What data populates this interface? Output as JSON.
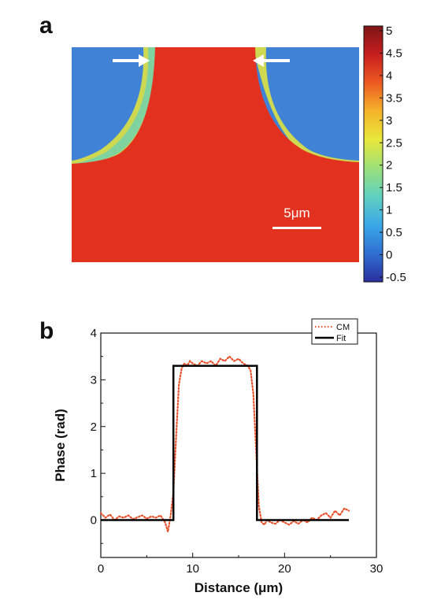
{
  "panels": {
    "a_label": "a",
    "b_label": "b"
  },
  "scalebar": {
    "label": "5μm"
  },
  "colorbar": {
    "ticks": [
      "5",
      "4.5",
      "4",
      "3.5",
      "3",
      "2.5",
      "2",
      "1.5",
      "1",
      "0.5",
      "0",
      "-0.5"
    ],
    "colors": [
      "#2b2f9e",
      "#2f6fd0",
      "#3aa8e8",
      "#5fd0c0",
      "#9be07a",
      "#e8e83a",
      "#f5b32a",
      "#ec5a22",
      "#c81e1e",
      "#7d1515"
    ]
  },
  "chart_data": {
    "type": "line",
    "xlabel": "Distance (μm)",
    "ylabel": "Phase (rad)",
    "xlim": [
      0,
      30
    ],
    "ylim": [
      -0.8,
      4
    ],
    "xticks": [
      "0",
      "10",
      "20",
      "30"
    ],
    "yticks": [
      "0",
      "1",
      "2",
      "3",
      "4"
    ],
    "legend_position": "top-right",
    "series": [
      {
        "name": "CM",
        "style": "dotted",
        "color": "#e8502a",
        "x": [
          0.0,
          0.5,
          1.0,
          1.5,
          2.0,
          2.5,
          3.0,
          3.5,
          4.0,
          4.5,
          5.0,
          5.5,
          6.0,
          6.5,
          7.0,
          7.3,
          7.6,
          7.9,
          8.2,
          8.5,
          8.8,
          9.1,
          9.4,
          9.7,
          10.0,
          10.5,
          11.0,
          11.5,
          12.0,
          12.5,
          13.0,
          13.5,
          14.0,
          14.5,
          15.0,
          15.5,
          16.0,
          16.3,
          16.6,
          16.9,
          17.2,
          17.5,
          17.8,
          18.1,
          18.5,
          19.0,
          19.5,
          20.0,
          20.5,
          21.0,
          21.5,
          22.0,
          22.5,
          23.0,
          23.5,
          24.0,
          24.5,
          25.0,
          25.5,
          26.0,
          26.5,
          27.0
        ],
        "y": [
          0.15,
          0.05,
          0.12,
          0.0,
          0.08,
          0.05,
          0.1,
          0.02,
          0.06,
          0.1,
          0.03,
          0.08,
          0.05,
          0.1,
          -0.05,
          -0.25,
          0.1,
          0.6,
          1.8,
          2.9,
          3.25,
          3.35,
          3.3,
          3.4,
          3.35,
          3.3,
          3.4,
          3.35,
          3.4,
          3.3,
          3.45,
          3.4,
          3.5,
          3.4,
          3.45,
          3.35,
          3.3,
          3.2,
          2.7,
          1.5,
          0.3,
          -0.05,
          -0.1,
          0.0,
          -0.05,
          -0.08,
          0.0,
          -0.05,
          -0.1,
          -0.02,
          -0.08,
          0.0,
          -0.05,
          0.05,
          0.0,
          0.1,
          0.15,
          0.05,
          0.2,
          0.1,
          0.25,
          0.2
        ]
      },
      {
        "name": "Fit",
        "style": "solid",
        "color": "#000000",
        "x": [
          0,
          7.9,
          7.9,
          17.0,
          17.0,
          27.0
        ],
        "y": [
          0,
          0,
          3.3,
          3.3,
          0,
          0
        ]
      }
    ]
  }
}
